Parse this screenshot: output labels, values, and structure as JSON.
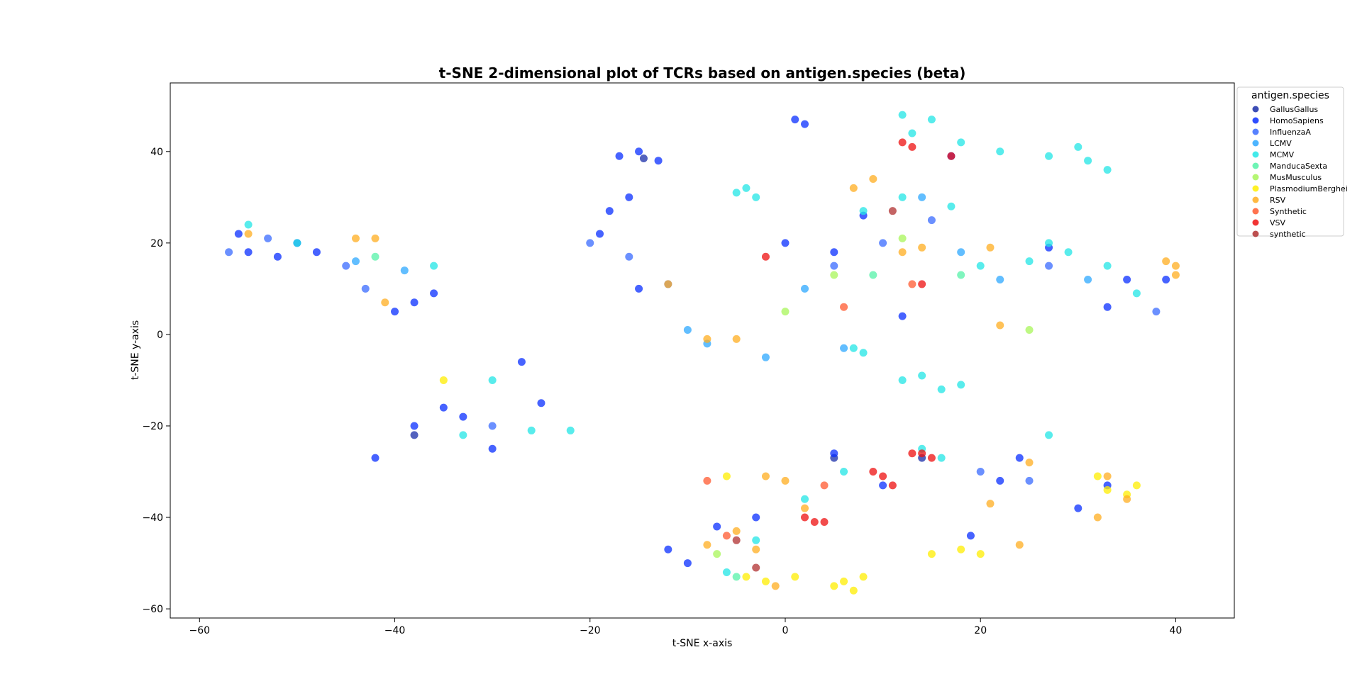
{
  "chart_data": {
    "type": "scatter",
    "title": "t-SNE 2-dimensional plot of TCRs based on antigen.species (beta)",
    "xlabel": "t-SNE x-axis",
    "ylabel": "t-SNE y-axis",
    "xlim": [
      -63,
      46
    ],
    "ylim": [
      -62,
      55
    ],
    "xticks": [
      -60,
      -40,
      -20,
      0,
      20,
      40
    ],
    "yticks": [
      -60,
      -40,
      -20,
      0,
      20,
      40
    ],
    "xtick_labels": [
      "−60",
      "−40",
      "−20",
      "0",
      "20",
      "40"
    ],
    "ytick_labels": [
      "−60",
      "−40",
      "−20",
      "0",
      "20",
      "40"
    ],
    "grid": false,
    "legend": {
      "title": "antigen.species",
      "placement": "outside upper right"
    },
    "series": [
      {
        "name": "GallusGallus",
        "color": "#1a2ea8",
        "points": [
          [
            -14.5,
            38.5
          ],
          [
            -38,
            -22
          ],
          [
            5,
            -27
          ],
          [
            14,
            -27
          ]
        ]
      },
      {
        "name": "HomoSapiens",
        "color": "#0a2fff",
        "points": [
          [
            -56,
            22
          ],
          [
            -55,
            18
          ],
          [
            -52,
            17
          ],
          [
            -50,
            20
          ],
          [
            -48,
            18
          ],
          [
            -40,
            5
          ],
          [
            -38,
            7
          ],
          [
            -36,
            9
          ],
          [
            -17,
            39
          ],
          [
            -15,
            40
          ],
          [
            -13,
            38
          ],
          [
            -19,
            22
          ],
          [
            -18,
            27
          ],
          [
            -16,
            30
          ],
          [
            -15,
            10
          ],
          [
            -38,
            -20
          ],
          [
            -35,
            -16
          ],
          [
            -33,
            -18
          ],
          [
            -30,
            -25
          ],
          [
            -42,
            -27
          ],
          [
            -27,
            -6
          ],
          [
            -25,
            -15
          ],
          [
            1,
            47
          ],
          [
            2,
            46
          ],
          [
            -12,
            -47
          ],
          [
            -10,
            -50
          ],
          [
            -7,
            -42
          ],
          [
            -3,
            -40
          ],
          [
            5,
            -26
          ],
          [
            10,
            -33
          ],
          [
            22,
            -32
          ],
          [
            24,
            -27
          ],
          [
            19,
            -44
          ],
          [
            30,
            -38
          ],
          [
            33,
            -33
          ],
          [
            0,
            20
          ],
          [
            5,
            18
          ],
          [
            8,
            26
          ],
          [
            17,
            39
          ],
          [
            27,
            19
          ],
          [
            35,
            12
          ],
          [
            39,
            12
          ],
          [
            33,
            6
          ],
          [
            12,
            4
          ]
        ]
      },
      {
        "name": "InfluenzaA",
        "color": "#3a6bff",
        "points": [
          [
            -57,
            18
          ],
          [
            -53,
            21
          ],
          [
            -45,
            15
          ],
          [
            -43,
            10
          ],
          [
            -30,
            -20
          ],
          [
            -20,
            20
          ],
          [
            -16,
            17
          ],
          [
            -12,
            11
          ],
          [
            5,
            15
          ],
          [
            10,
            20
          ],
          [
            15,
            25
          ],
          [
            20,
            -30
          ],
          [
            25,
            -32
          ],
          [
            27,
            15
          ],
          [
            38,
            5
          ]
        ]
      },
      {
        "name": "LCMV",
        "color": "#2ea8ff",
        "points": [
          [
            -44,
            16
          ],
          [
            -39,
            14
          ],
          [
            -10,
            1
          ],
          [
            -8,
            -2
          ],
          [
            -2,
            -5
          ],
          [
            2,
            10
          ],
          [
            6,
            -3
          ],
          [
            14,
            30
          ],
          [
            18,
            18
          ],
          [
            22,
            12
          ],
          [
            31,
            12
          ]
        ]
      },
      {
        "name": "MCMV",
        "color": "#22e6e6",
        "points": [
          [
            -55,
            24
          ],
          [
            -50,
            20
          ],
          [
            -36,
            15
          ],
          [
            -33,
            -22
          ],
          [
            -30,
            -10
          ],
          [
            -26,
            -21
          ],
          [
            -22,
            -21
          ],
          [
            -5,
            31
          ],
          [
            -4,
            32
          ],
          [
            -3,
            30
          ],
          [
            12,
            48
          ],
          [
            13,
            44
          ],
          [
            15,
            47
          ],
          [
            18,
            42
          ],
          [
            22,
            40
          ],
          [
            27,
            39
          ],
          [
            30,
            41
          ],
          [
            31,
            38
          ],
          [
            33,
            36
          ],
          [
            12,
            -10
          ],
          [
            14,
            -9
          ],
          [
            16,
            -12
          ],
          [
            18,
            -11
          ],
          [
            7,
            -3
          ],
          [
            8,
            -4
          ],
          [
            8,
            27
          ],
          [
            12,
            30
          ],
          [
            17,
            28
          ],
          [
            20,
            15
          ],
          [
            25,
            16
          ],
          [
            27,
            20
          ],
          [
            29,
            18
          ],
          [
            33,
            15
          ],
          [
            36,
            9
          ],
          [
            2,
            -36
          ],
          [
            6,
            -30
          ],
          [
            14,
            -25
          ],
          [
            16,
            -27
          ],
          [
            27,
            -22
          ],
          [
            -6,
            -52
          ],
          [
            -3,
            -45
          ]
        ]
      },
      {
        "name": "ManducaSexta",
        "color": "#55f2a8",
        "points": [
          [
            -42,
            17
          ],
          [
            9,
            13
          ],
          [
            18,
            13
          ],
          [
            -5,
            -53
          ]
        ]
      },
      {
        "name": "MusMusculus",
        "color": "#a8f55a",
        "points": [
          [
            0,
            5
          ],
          [
            5,
            13
          ],
          [
            12,
            21
          ],
          [
            25,
            1
          ],
          [
            -7,
            -48
          ]
        ]
      },
      {
        "name": "PlasmodiumBerghei",
        "color": "#ffee00",
        "points": [
          [
            5,
            -55
          ],
          [
            6,
            -54
          ],
          [
            7,
            -56
          ],
          [
            8,
            -53
          ],
          [
            -4,
            -53
          ],
          [
            -2,
            -54
          ],
          [
            1,
            -53
          ],
          [
            33,
            -34
          ],
          [
            35,
            -35
          ],
          [
            36,
            -33
          ],
          [
            32,
            -31
          ],
          [
            15,
            -48
          ],
          [
            18,
            -47
          ],
          [
            20,
            -48
          ],
          [
            -6,
            -31
          ],
          [
            -35,
            -10
          ]
        ]
      },
      {
        "name": "RSV",
        "color": "#ffad20",
        "points": [
          [
            -55,
            22
          ],
          [
            -44,
            21
          ],
          [
            -42,
            21
          ],
          [
            -41,
            7
          ],
          [
            -12,
            11
          ],
          [
            -8,
            -1
          ],
          [
            -5,
            -1
          ],
          [
            -2,
            -31
          ],
          [
            0,
            -32
          ],
          [
            2,
            -38
          ],
          [
            -8,
            -46
          ],
          [
            -5,
            -43
          ],
          [
            -3,
            -47
          ],
          [
            -1,
            -55
          ],
          [
            7,
            32
          ],
          [
            9,
            34
          ],
          [
            12,
            18
          ],
          [
            14,
            19
          ],
          [
            21,
            19
          ],
          [
            22,
            2
          ],
          [
            21,
            -37
          ],
          [
            24,
            -46
          ],
          [
            25,
            -28
          ],
          [
            32,
            -40
          ],
          [
            35,
            -36
          ],
          [
            33,
            -31
          ],
          [
            39,
            16
          ],
          [
            40,
            15
          ],
          [
            40,
            13
          ]
        ]
      },
      {
        "name": "Synthetic",
        "color": "#ff5a30",
        "points": [
          [
            4,
            -33
          ],
          [
            -6,
            -44
          ],
          [
            -8,
            -32
          ],
          [
            13,
            11
          ],
          [
            6,
            6
          ]
        ]
      },
      {
        "name": "VSV",
        "color": "#ee1010",
        "points": [
          [
            -2,
            17
          ],
          [
            2,
            -40
          ],
          [
            3,
            -41
          ],
          [
            4,
            -41
          ],
          [
            9,
            -30
          ],
          [
            10,
            -31
          ],
          [
            11,
            -33
          ],
          [
            13,
            -26
          ],
          [
            14,
            -26
          ],
          [
            15,
            -27
          ],
          [
            12,
            42
          ],
          [
            13,
            41
          ],
          [
            17,
            39
          ],
          [
            14,
            11
          ]
        ]
      },
      {
        "name": "synthetic",
        "color": "#b03030",
        "points": [
          [
            11,
            27
          ],
          [
            -5,
            -45
          ],
          [
            -3,
            -51
          ]
        ]
      }
    ]
  }
}
